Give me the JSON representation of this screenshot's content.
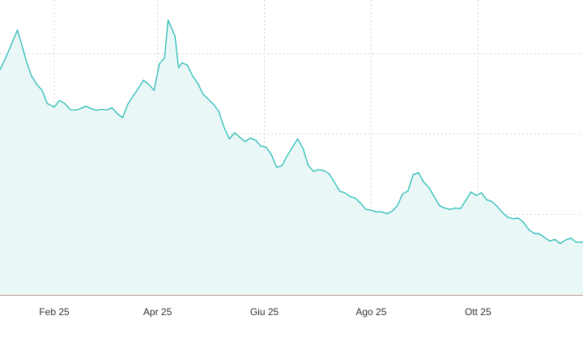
{
  "chart_data": {
    "type": "area",
    "title": "",
    "xlabel": "",
    "ylabel": "",
    "x_range": [
      "2025-01-01",
      "2025-11-30"
    ],
    "y_range": [
      0,
      110
    ],
    "grid": true,
    "legend": "none",
    "colors": {
      "line": "#26bcb4",
      "fill": "#eaf7f7",
      "grid": "#d2d2d2",
      "axis": "#c49a9a"
    },
    "x_ticks": [
      {
        "label": "Feb 25",
        "date": "2025-02-01"
      },
      {
        "label": "Apr 25",
        "date": "2025-04-01"
      },
      {
        "label": "Giu 25",
        "date": "2025-06-01"
      },
      {
        "label": "Ago 25",
        "date": "2025-08-01"
      },
      {
        "label": "Ott 25",
        "date": "2025-10-01"
      }
    ],
    "y_grid": [
      30,
      60,
      90
    ],
    "series": [
      {
        "x": [
          "2025-01-01",
          "2025-01-05",
          "2025-01-09",
          "2025-01-11",
          "2025-01-13",
          "2025-01-16",
          "2025-01-19",
          "2025-01-22",
          "2025-01-25",
          "2025-01-28",
          "2025-02-01",
          "2025-02-04",
          "2025-02-07",
          "2025-02-10",
          "2025-02-13",
          "2025-02-16",
          "2025-02-19",
          "2025-02-22",
          "2025-02-25",
          "2025-02-28",
          "2025-03-03",
          "2025-03-06",
          "2025-03-09",
          "2025-03-12",
          "2025-03-15",
          "2025-03-18",
          "2025-03-21",
          "2025-03-24",
          "2025-03-27",
          "2025-03-30",
          "2025-04-02",
          "2025-04-05",
          "2025-04-07",
          "2025-04-09",
          "2025-04-11",
          "2025-04-13",
          "2025-04-15",
          "2025-04-18",
          "2025-04-21",
          "2025-04-24",
          "2025-04-27",
          "2025-04-30",
          "2025-05-03",
          "2025-05-06",
          "2025-05-09",
          "2025-05-12",
          "2025-05-15",
          "2025-05-18",
          "2025-05-21",
          "2025-05-24",
          "2025-05-27",
          "2025-05-30",
          "2025-06-02",
          "2025-06-05",
          "2025-06-08",
          "2025-06-11",
          "2025-06-14",
          "2025-06-17",
          "2025-06-20",
          "2025-06-23",
          "2025-06-26",
          "2025-06-29",
          "2025-07-02",
          "2025-07-05",
          "2025-07-08",
          "2025-07-11",
          "2025-07-14",
          "2025-07-17",
          "2025-07-20",
          "2025-07-23",
          "2025-07-26",
          "2025-07-29",
          "2025-08-01",
          "2025-08-04",
          "2025-08-07",
          "2025-08-10",
          "2025-08-13",
          "2025-08-16",
          "2025-08-19",
          "2025-08-22",
          "2025-08-25",
          "2025-08-28",
          "2025-08-31",
          "2025-09-03",
          "2025-09-06",
          "2025-09-09",
          "2025-09-12",
          "2025-09-15",
          "2025-09-18",
          "2025-09-21",
          "2025-09-24",
          "2025-09-27",
          "2025-09-30",
          "2025-10-03",
          "2025-10-06",
          "2025-10-09",
          "2025-10-12",
          "2025-10-15",
          "2025-10-18",
          "2025-10-21",
          "2025-10-24",
          "2025-10-27",
          "2025-10-30",
          "2025-11-02",
          "2025-11-05",
          "2025-11-08",
          "2025-11-11",
          "2025-11-14",
          "2025-11-17",
          "2025-11-20",
          "2025-11-23",
          "2025-11-26",
          "2025-11-30"
        ],
        "values": [
          84.0,
          89.5,
          95.8,
          98.8,
          94.4,
          87.3,
          81.7,
          78.6,
          76.3,
          71.4,
          70.1,
          72.5,
          71.4,
          69.2,
          68.9,
          69.5,
          70.4,
          69.5,
          68.9,
          69.2,
          69.0,
          69.8,
          67.6,
          66.1,
          71.1,
          74.2,
          77.0,
          80.1,
          78.5,
          76.3,
          86.2,
          88.4,
          102.5,
          99.5,
          96.5,
          84.7,
          86.6,
          85.7,
          81.7,
          78.9,
          74.9,
          73.0,
          71.1,
          68.4,
          62.4,
          58.2,
          60.5,
          58.8,
          57.2,
          58.5,
          57.7,
          55.5,
          55.1,
          52.4,
          47.6,
          48.2,
          51.9,
          55.1,
          58.2,
          54.8,
          48.5,
          46.1,
          46.7,
          46.4,
          45.2,
          42.1,
          38.7,
          38.1,
          36.7,
          36.1,
          34.2,
          31.9,
          31.6,
          31.0,
          31.0,
          30.3,
          31.2,
          33.3,
          37.7,
          38.8,
          44.9,
          45.6,
          42.1,
          40.1,
          36.7,
          33.3,
          32.4,
          31.9,
          32.4,
          32.2,
          35.2,
          38.4,
          37.1,
          38.1,
          35.5,
          34.8,
          33.0,
          30.7,
          29.0,
          28.4,
          28.7,
          27.1,
          24.4,
          23.0,
          22.8,
          21.5,
          20.1,
          20.7,
          19.2,
          20.5,
          21.2,
          19.7,
          19.7
        ]
      }
    ]
  }
}
